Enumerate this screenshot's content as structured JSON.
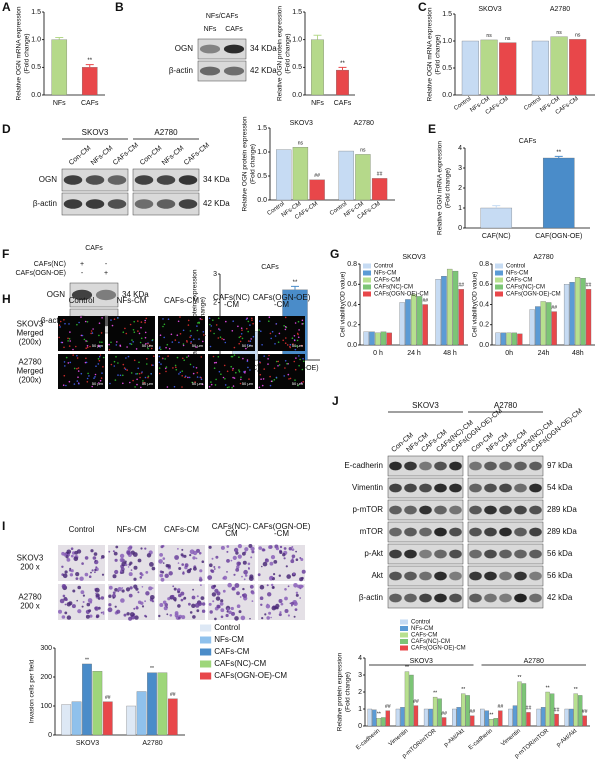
{
  "panel_labels": [
    "A",
    "B",
    "C",
    "D",
    "E",
    "F",
    "G",
    "H",
    "I",
    "J"
  ],
  "chart_data": [
    {
      "type": "bar",
      "ylabel": [
        "Relative OGN mRNA expression",
        "(Fold change)"
      ],
      "categories": [
        "NFs",
        "CAFs"
      ],
      "values": [
        1.0,
        0.5
      ],
      "errors": [
        0.04,
        0.05
      ],
      "colors": [
        "#b5d98a",
        "#e8474a"
      ],
      "significance": [
        null,
        "**"
      ],
      "ylim": [
        0,
        1.5
      ],
      "yticks": [
        {
          "value": 0,
          "label": "0.0"
        },
        0.5,
        {
          "value": 1,
          "label": "1.0"
        },
        1.5
      ]
    },
    {
      "type": "bar",
      "ylabel": [
        "Relative OGN protein expression",
        "(Fold change)"
      ],
      "categories": [
        "NFs",
        "CAFs"
      ],
      "values": [
        1.0,
        0.45
      ],
      "errors": [
        0.08,
        0.05
      ],
      "colors": [
        "#b5d98a",
        "#e8474a"
      ],
      "significance": [
        null,
        "**"
      ],
      "ylim": [
        0,
        1.5
      ],
      "yticks": [
        {
          "value": 0,
          "label": "0.0"
        },
        0.5,
        {
          "value": 1,
          "label": "1.0"
        },
        1.5
      ]
    },
    {
      "type": "bar",
      "ylabel": [
        "Relative OGN mRNA expression",
        "(Fold change)"
      ],
      "categories": [
        "SKOV3",
        "A2780"
      ],
      "category_position": "top",
      "series_ticks": true,
      "series": [
        {
          "name": "Control",
          "color": "#c6dbf3",
          "values": [
            1.0,
            1.0
          ]
        },
        {
          "name": "NFs-CM",
          "color": "#b5d98a",
          "values": [
            1.02,
            1.08
          ],
          "significance": [
            "ns",
            "ns"
          ]
        },
        {
          "name": "CAFs-CM",
          "color": "#e8474a",
          "values": [
            0.97,
            1.03
          ],
          "significance": [
            "ns",
            "ns"
          ]
        }
      ],
      "ylim": [
        0,
        1.5
      ],
      "yticks": [
        {
          "value": 0,
          "label": "0.0"
        },
        0.5,
        {
          "value": 1,
          "label": "1.0"
        },
        1.5
      ]
    },
    {
      "type": "bar",
      "ylabel": [
        "Relative OGN protein expression",
        "(Fold change)"
      ],
      "categories": [
        "SKOV3",
        "A2780"
      ],
      "category_position": "top",
      "series_ticks": true,
      "series": [
        {
          "name": "Control",
          "color": "#c6dbf3",
          "values": [
            1.05,
            1.02
          ]
        },
        {
          "name": "NFs-CM",
          "color": "#b5d98a",
          "values": [
            1.1,
            0.95
          ],
          "significance": [
            "ns",
            "ns"
          ]
        },
        {
          "name": "CAFs-CM",
          "color": "#e8474a",
          "values": [
            0.42,
            0.45
          ],
          "significance": [
            "##",
            "##"
          ]
        }
      ],
      "ylim": [
        0,
        1.5
      ],
      "yticks": [
        {
          "value": 0,
          "label": "0.0"
        },
        0.5,
        {
          "value": 1,
          "label": "1.0"
        },
        1.5
      ]
    },
    {
      "type": "bar",
      "title": "CAFs",
      "ylabel": [
        "Relative OGN mRNA expression",
        "(Fold change)"
      ],
      "categories": [
        "CAF(NC)",
        "CAF(OGN-OE)"
      ],
      "values": [
        1.0,
        3.5
      ],
      "errors": [
        0.12,
        0.08
      ],
      "colors": [
        "#c6dbf3",
        "#4a8cc9"
      ],
      "significance": [
        null,
        "**"
      ],
      "ylim": [
        0,
        4
      ],
      "yticks": [
        0,
        1,
        2,
        3,
        4
      ]
    },
    {
      "type": "bar",
      "title": "CAFs",
      "ylabel": [
        "Relative OGN protein expression",
        "(Fold change)"
      ],
      "categories": [
        "CAF(NC)",
        "CAF(OGN-OE)"
      ],
      "values": [
        1.0,
        2.45
      ],
      "errors": [
        0.08,
        0.12
      ],
      "colors": [
        "#c6dbf3",
        "#4a8cc9"
      ],
      "significance": [
        null,
        "**"
      ],
      "ylim": [
        0,
        3
      ],
      "yticks": [
        0,
        1,
        2,
        3
      ]
    },
    {
      "type": "bar",
      "title": "SKOV3",
      "ylabel": [
        "Cell viability(OD value)"
      ],
      "categories": [
        "0 h",
        "24 h",
        "48 h"
      ],
      "legend": "top-left",
      "series": [
        {
          "name": "Control",
          "color": "#c6dbf3",
          "values": [
            0.13,
            0.42,
            0.65
          ]
        },
        {
          "name": "NFs-CM",
          "color": "#5b9bd5",
          "values": [
            0.13,
            0.45,
            0.68
          ]
        },
        {
          "name": "CAFs-CM",
          "color": "#b7e08f",
          "values": [
            0.12,
            0.5,
            0.75
          ]
        },
        {
          "name": "CAFs(NC)-CM",
          "color": "#7cc576",
          "values": [
            0.13,
            0.48,
            0.73
          ]
        },
        {
          "name": "CAFs(OGN-OE)-CM",
          "color": "#e8474a",
          "values": [
            0.12,
            0.4,
            0.55
          ],
          "significance": [
            null,
            "##",
            "##"
          ]
        }
      ],
      "ylim": [
        0,
        0.8
      ],
      "yticks": [
        {
          "value": 0,
          "label": "0.0"
        },
        0.2,
        0.4,
        0.6,
        0.8
      ]
    },
    {
      "type": "bar",
      "title": "A2780",
      "ylabel": [
        "Cell viability(OD value)"
      ],
      "categories": [
        "0h",
        "24h",
        "48h"
      ],
      "legend": "top-left",
      "series": [
        {
          "name": "Control",
          "color": "#c6dbf3",
          "values": [
            0.12,
            0.35,
            0.6
          ]
        },
        {
          "name": "NFs-CM",
          "color": "#5b9bd5",
          "values": [
            0.12,
            0.38,
            0.62
          ]
        },
        {
          "name": "CAFs-CM",
          "color": "#b7e08f",
          "values": [
            0.12,
            0.43,
            0.67
          ]
        },
        {
          "name": "CAFs(NC)-CM",
          "color": "#7cc576",
          "values": [
            0.12,
            0.42,
            0.66
          ]
        },
        {
          "name": "CAFs(OGN-OE)-CM",
          "color": "#e8474a",
          "values": [
            0.11,
            0.33,
            0.55
          ],
          "significance": [
            null,
            "##",
            "##"
          ]
        }
      ],
      "ylim": [
        0,
        0.8
      ],
      "yticks": [
        {
          "value": 0,
          "label": "0.0"
        },
        0.2,
        0.4,
        0.6,
        0.8
      ]
    },
    {
      "type": "bar",
      "ylabel": [
        "Invasion cells per field"
      ],
      "categories": [
        "SKOV3",
        "A2780"
      ],
      "legend": "right",
      "series": [
        {
          "name": "Control",
          "color": "#dde8f5",
          "values": [
            105,
            100
          ]
        },
        {
          "name": "NFs-CM",
          "color": "#8fc1ec",
          "values": [
            115,
            150
          ]
        },
        {
          "name": "CAFs-CM",
          "color": "#4a8cc9",
          "values": [
            245,
            215
          ],
          "significance": [
            "**",
            "**"
          ]
        },
        {
          "name": "CAFs(NC)-CM",
          "color": "#9ed67a",
          "values": [
            220,
            215
          ]
        },
        {
          "name": "CAFs(OGN-OE)-CM",
          "color": "#e8474a",
          "values": [
            115,
            125
          ],
          "significance": [
            "##",
            "##"
          ]
        }
      ],
      "ylim": [
        0,
        300
      ],
      "yticks": [
        0,
        100,
        200,
        300
      ]
    },
    {
      "type": "bar",
      "ylabel": [
        "Relative protein expression",
        "(Fold change)"
      ],
      "groups": [
        "SKOV3",
        "A2780"
      ],
      "categories": [
        "E-cadherin",
        "Vimentin",
        "p-mTOR/mTOR",
        "p-Akt/Akt",
        "E-cadherin",
        "Vimentin",
        "p-mTOR/mTOR",
        "p-Akt/Akt"
      ],
      "rotate_labels": true,
      "legend": "top",
      "series": [
        {
          "name": "Control",
          "color": "#c6dbf3",
          "values": [
            1,
            1,
            1,
            1,
            1,
            1,
            1,
            1
          ]
        },
        {
          "name": "NFs-CM",
          "color": "#5b9bd5",
          "values": [
            0.95,
            1.1,
            1.0,
            1.1,
            0.9,
            1.2,
            1.1,
            1.0
          ]
        },
        {
          "name": "CAFs-CM",
          "color": "#b7e08f",
          "values": [
            0.45,
            3.2,
            1.7,
            1.9,
            0.4,
            2.6,
            2.0,
            1.9
          ],
          "significance": [
            "**",
            "**",
            "**",
            "**",
            "**",
            "**",
            "**",
            "**"
          ]
        },
        {
          "name": "CAFs(NC)-CM",
          "color": "#7cc576",
          "values": [
            0.5,
            3.0,
            1.6,
            1.8,
            0.45,
            2.5,
            1.9,
            1.8
          ]
        },
        {
          "name": "CAFs(OGN-OE)-CM",
          "color": "#e8474a",
          "values": [
            0.9,
            1.2,
            0.5,
            0.6,
            0.9,
            0.8,
            0.7,
            0.6
          ],
          "significance": [
            "##",
            "##",
            "##",
            "##",
            "##",
            "##",
            "##",
            "##"
          ]
        }
      ],
      "ylim": [
        0,
        4
      ],
      "yticks": [
        0,
        1,
        2,
        3,
        4
      ]
    }
  ],
  "blots": [
    {
      "title": "NFs/CAFs",
      "lanes": [
        "NFs",
        "CAFs"
      ],
      "rows": [
        "OGN",
        "β-actin"
      ],
      "sizes": [
        "34 KDa",
        "42 KDa"
      ]
    },
    {
      "groups": [
        "SKOV3",
        "A2780"
      ],
      "lanes": [
        "Con-CM",
        "NFs-CM",
        "CAFs-CM"
      ],
      "rows": [
        "OGN",
        "β-actin"
      ],
      "sizes": [
        "34 KDa",
        "42 KDa"
      ]
    },
    {
      "title": "CAFs",
      "conditions": [
        {
          "name": "CAFs(NC)",
          "signs": [
            "+",
            "-"
          ]
        },
        {
          "name": "CAFs(OGN-OE)",
          "signs": [
            "-",
            "+"
          ]
        }
      ],
      "rows": [
        "OGN",
        "β-actin"
      ],
      "sizes": [
        "34 KDa",
        "42 KDa"
      ]
    },
    {
      "groups": [
        "SKOV3",
        "A2780"
      ],
      "lanes": [
        "Con-CM",
        "NFs-CM",
        "CAFs-CM",
        "CAFs(NC)-CM",
        "CAFs(OGN-OE)-CM"
      ],
      "rows": [
        "E-cadherin",
        "Vimentin",
        "p-mTOR",
        "mTOR",
        "p-Akt",
        "Akt",
        "β-actin"
      ],
      "sizes": [
        "97 kDa",
        "54 kDa",
        "289 kDa",
        "289 kDa",
        "56 kDa",
        "56 kDa",
        "42 kDa"
      ]
    }
  ],
  "micrographs": [
    {
      "columns": [
        [
          "Control"
        ],
        [
          "NFs-CM"
        ],
        [
          "CAFs-CM"
        ],
        [
          "CAFs(NC)",
          "-CM"
        ],
        [
          "CAFs(OGN-OE)",
          "-CM"
        ]
      ],
      "rows": [
        [
          "SKOV3",
          "Merged",
          "(200x)"
        ],
        [
          "A2780",
          "Merged",
          "(200x)"
        ]
      ],
      "scale": "50 μm"
    },
    {
      "columns": [
        [
          "Control"
        ],
        [
          "NFs-CM"
        ],
        [
          "CAFs-CM"
        ],
        [
          "CAFs(NC)-",
          "CM"
        ],
        [
          "CAFs(OGN-OE)",
          "-CM"
        ]
      ],
      "rows": [
        [
          "SKOV3",
          "200 x"
        ],
        [
          "A2780",
          "200 x"
        ]
      ]
    }
  ]
}
